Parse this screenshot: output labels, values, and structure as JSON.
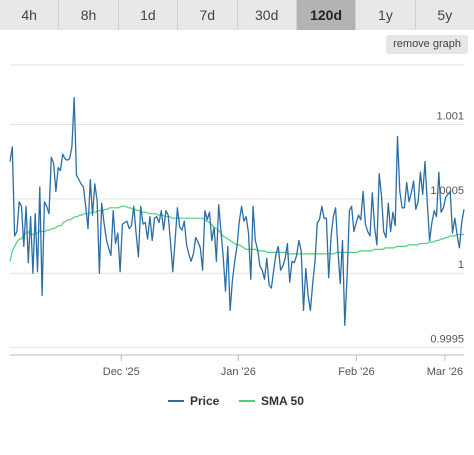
{
  "tabs": [
    {
      "label": "4h",
      "active": false
    },
    {
      "label": "8h",
      "active": false
    },
    {
      "label": "1d",
      "active": false
    },
    {
      "label": "7d",
      "active": false
    },
    {
      "label": "30d",
      "active": false
    },
    {
      "label": "120d",
      "active": true
    },
    {
      "label": "1y",
      "active": false
    },
    {
      "label": "5y",
      "active": false
    }
  ],
  "remove_graph_label": "remove graph",
  "chart_data": {
    "type": "line",
    "title": "",
    "xlabel": "",
    "ylabel": "",
    "x_ticks": [
      "Dec '25",
      "Jan '26",
      "Feb '26",
      "Mar '26"
    ],
    "y_ticks": [
      "1.001",
      "1.0005",
      "1",
      "0.9995"
    ],
    "ylim": [
      0.99945,
      1.0014
    ],
    "grid": true,
    "legend_position": "bottom",
    "series": [
      {
        "name": "Price",
        "color": "#2b6ea6",
        "values": [
          1.00075,
          1.00085,
          1.00025,
          1.00028,
          1.00048,
          1.00045,
          1.00018,
          1.00045,
          1.00007,
          1.00038,
          1.0,
          1.0004,
          1.00001,
          1.00058,
          0.99985,
          1.00048,
          1.00045,
          1.0004,
          1.00078,
          1.00074,
          1.00055,
          1.00071,
          1.00069,
          1.0008,
          1.00077,
          1.00076,
          1.00077,
          1.00085,
          1.00118,
          1.00066,
          1.00063,
          1.0006,
          1.00058,
          1.00045,
          1.0003,
          1.00063,
          1.00039,
          1.0006,
          1.00049,
          1.0,
          1.00047,
          1.00034,
          1.00023,
          1.00017,
          1.00012,
          1.00042,
          1.0002,
          1.00027,
          1.00001,
          1.00033,
          1.00034,
          1.00035,
          1.0003,
          1.00032,
          1.00045,
          1.00027,
          1.00011,
          1.00045,
          1.00033,
          1.00034,
          1.00023,
          1.00038,
          1.00022,
          1.00037,
          1.00038,
          1.00034,
          1.00042,
          1.00029,
          1.00042,
          1.00039,
          1.00021,
          1.00001,
          1.00022,
          1.00044,
          1.00031,
          1.00029,
          1.00035,
          1.00019,
          1.00013,
          1.00008,
          1.00013,
          1.00024,
          1.00021,
          1.00017,
          1.00002,
          1.00042,
          1.00036,
          1.00041,
          1.00022,
          1.00031,
          1.00008,
          1.00046,
          1.00029,
          1.00011,
          0.99988,
          1.00018,
          0.99975,
          0.99995,
          1.00008,
          1.00018,
          1.00035,
          1.00045,
          1.00035,
          1.00038,
          1.00027,
          0.99996,
          1.00045,
          1.00022,
          1.00016,
          1.00005,
          1.00002,
          0.99996,
          1.0001,
          0.99992,
          0.9999,
          1.00002,
          1.00013,
          1.00018,
          1.00002,
          1.00005,
          1.0001,
          1.0002,
          0.99994,
          1.00008,
          1.00007,
          1.00012,
          1.00022,
          1.00015,
          0.99975,
          1.00003,
          0.99985,
          0.99975,
          0.99993,
          1.00008,
          1.00034,
          1.00036,
          1.00045,
          1.00037,
          1.00037,
          0.99997,
          1.00024,
          1.00038,
          1.00044,
          1.00016,
          0.99993,
          1.00022,
          0.99965,
          0.99998,
          1.00042,
          1.00045,
          1.00028,
          1.00034,
          1.00039,
          1.00036,
          1.00055,
          1.00033,
          1.00028,
          1.00025,
          1.00054,
          1.00031,
          1.00019,
          1.00067,
          1.00052,
          1.00028,
          1.00024,
          1.00047,
          1.00028,
          1.00041,
          1.00032,
          1.00092,
          1.00055,
          1.00044,
          1.00044,
          1.00061,
          1.00048,
          1.00054,
          1.00062,
          1.00043,
          1.00048,
          1.00068,
          1.00053,
          1.00075,
          1.00047,
          1.00022,
          1.00034,
          1.00042,
          1.00038,
          1.00068,
          1.00041,
          1.00044,
          1.00051,
          1.00053,
          1.00055,
          1.00027,
          1.00037,
          1.00026,
          1.00017,
          1.00034,
          1.00043
        ]
      },
      {
        "name": "SMA 50",
        "color": "#4cd07d",
        "values": [
          1.00008,
          1.00015,
          1.00018,
          1.00021,
          1.00023,
          1.00023,
          1.00026,
          1.00027,
          1.00028,
          1.00026,
          1.00026,
          1.00027,
          1.00027,
          1.00029,
          1.00028,
          1.00028,
          1.00029,
          1.00029,
          1.0003,
          1.0003,
          1.00031,
          1.00032,
          1.00032,
          1.00034,
          1.00035,
          1.00036,
          1.00036,
          1.00037,
          1.00038,
          1.00038,
          1.00039,
          1.00039,
          1.0004,
          1.0004,
          1.0004,
          1.00041,
          1.00041,
          1.00041,
          1.00042,
          1.00042,
          1.00042,
          1.00043,
          1.00043,
          1.00044,
          1.00044,
          1.00044,
          1.00044,
          1.00044,
          1.00045,
          1.00045,
          1.00045,
          1.00044,
          1.00044,
          1.00043,
          1.00043,
          1.00042,
          1.00042,
          1.00041,
          1.00041,
          1.00041,
          1.0004,
          1.0004,
          1.0004,
          1.0004,
          1.00039,
          1.00039,
          1.00039,
          1.00038,
          1.00038,
          1.00038,
          1.00037,
          1.00037,
          1.00037,
          1.00037,
          1.00037,
          1.00037,
          1.00037,
          1.00037,
          1.00037,
          1.00037,
          1.00037,
          1.00037,
          1.00037,
          1.00037,
          1.00036,
          1.00035,
          1.00034,
          1.00033,
          1.00031,
          1.0003,
          1.00029,
          1.00027,
          1.00025,
          1.00024,
          1.00023,
          1.00022,
          1.00021,
          1.0002,
          1.00019,
          1.00019,
          1.00018,
          1.00017,
          1.00016,
          1.00016,
          1.00016,
          1.00016,
          1.00016,
          1.00015,
          1.00015,
          1.00015,
          1.00015,
          1.00014,
          1.00014,
          1.00014,
          1.00014,
          1.00014,
          1.00014,
          1.00014,
          1.00014,
          1.00014,
          1.00013,
          1.00013,
          1.00013,
          1.00013,
          1.00013,
          1.00013,
          1.00013,
          1.00013,
          1.00013,
          1.00013,
          1.00013,
          1.00013,
          1.00013,
          1.00013,
          1.00013,
          1.00013,
          1.00013,
          1.00013,
          1.00013,
          1.00013,
          1.00013,
          1.00014,
          1.00014,
          1.00014,
          1.00014,
          1.00014,
          1.00014,
          1.00014,
          1.00014,
          1.00014,
          1.00014,
          1.00015,
          1.00015,
          1.00015,
          1.00015,
          1.00015,
          1.00015,
          1.00016,
          1.00016,
          1.00016,
          1.00016,
          1.00016,
          1.00017,
          1.00017,
          1.00017,
          1.00017,
          1.00017,
          1.00018,
          1.00018,
          1.00018,
          1.00018,
          1.00018,
          1.00019,
          1.00019,
          1.00019,
          1.00019,
          1.00019,
          1.0002,
          1.0002,
          1.0002,
          1.0002,
          1.00021,
          1.00021,
          1.00021,
          1.00022,
          1.00022,
          1.00023,
          1.00023,
          1.00024,
          1.00024,
          1.00025,
          1.00025,
          1.00025,
          1.00026,
          1.00026,
          1.00026,
          1.00026
        ]
      }
    ]
  }
}
